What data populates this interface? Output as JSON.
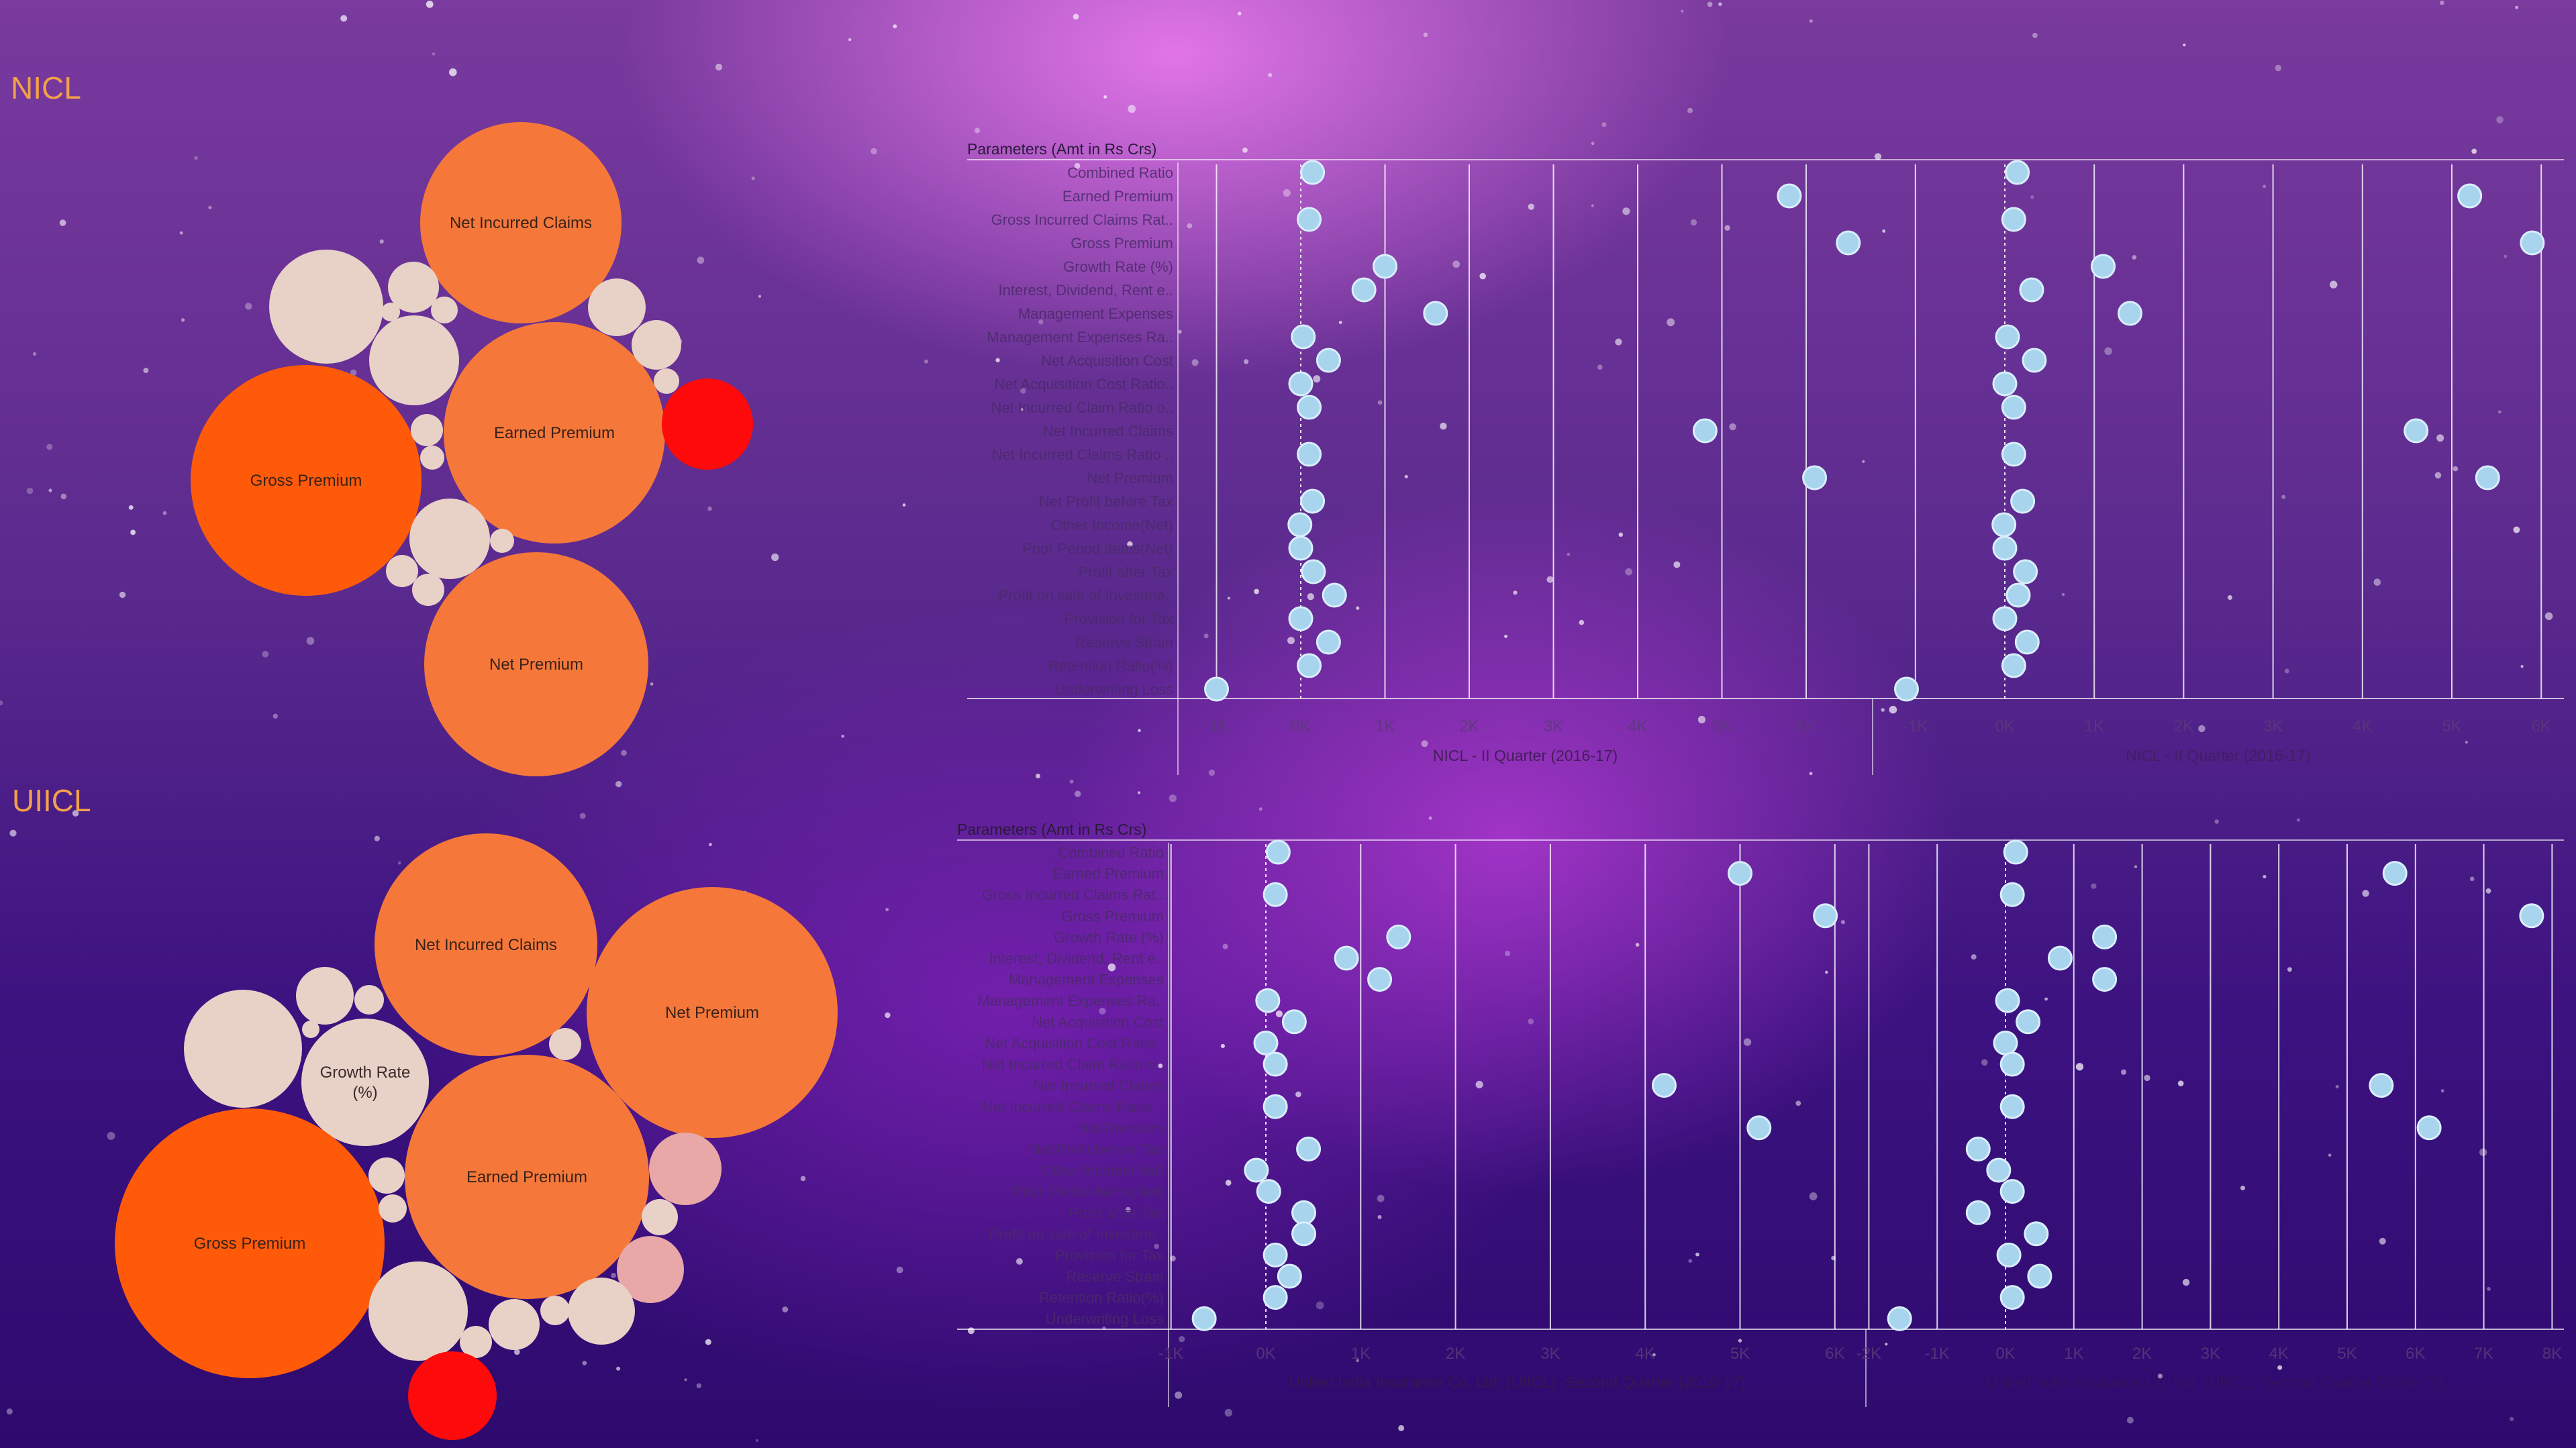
{
  "sections": [
    {
      "title": "NICL"
    },
    {
      "title": "UIICL"
    }
  ],
  "colors": {
    "large_bubble": "#f5783a",
    "largest_bubble": "#ff5a0a",
    "small_bubble": "#e8d2c8",
    "pink_bubble": "#e8a8a8",
    "red_bubble": "#ff0a0a",
    "dot_fill": "#a8d4ee",
    "dot_stroke": "#d8eefb",
    "grid_line": "#ffffff"
  },
  "bubbles": {
    "nicl": [
      {
        "label": "Net Incurred Claims",
        "size": "large"
      },
      {
        "label": "Earned Premium",
        "size": "large"
      },
      {
        "label": "Gross Premium",
        "size": "largest"
      },
      {
        "label": "Net Premium",
        "size": "large"
      }
    ],
    "uiicl": [
      {
        "label": "Net Incurred Claims",
        "size": "large"
      },
      {
        "label": "Net Premium",
        "size": "large"
      },
      {
        "label": "Growth Rate\n(%)",
        "size": "small"
      },
      {
        "label": "Earned Premium",
        "size": "large"
      },
      {
        "label": "Gross Premium",
        "size": "largest"
      }
    ]
  },
  "chart_data": [
    {
      "type": "scatter",
      "title": "NICL - II Quarter (2016-17)",
      "header": "Parameters (Amt in Rs Crs)",
      "categories": [
        "Combined Ratio",
        "Earned Premium",
        "Gross Incurred Claims Rat..",
        "Gross Premium",
        "Growth Rate (%)",
        "Interest, Dividend, Rent e..",
        "Management Expenses",
        "Management Expenses Ra..",
        "Net Acquisition Cost",
        "Net Acquisition Cost Ratio..",
        "Net Incurred Claim Ratio o..",
        "Net Incurred Claims",
        "Net Incurred Claims Ratio ..",
        "Net Premium",
        "Net Profit before Tax",
        "Other Income(Net)",
        "Prior Period Items(Net)",
        "Profit after Tax",
        "Profit on sale of Investme..",
        "Provision for Tax",
        "Reserve Strain",
        "Retention Ratio(%)",
        "Underwriting Loss"
      ],
      "panels": [
        {
          "xlim": [
            -1000,
            7300
          ],
          "ticks": [
            -1000,
            0,
            1000,
            2000,
            3000,
            4000,
            5000,
            6000
          ],
          "tick_labels": [
            "-1K",
            "0K",
            "1K",
            "2K",
            "3K",
            "4K",
            "5K",
            "6K"
          ],
          "values": [
            140,
            5800,
            100,
            6500,
            1000,
            750,
            1600,
            30,
            330,
            0,
            100,
            4800,
            100,
            6100,
            140,
            -10,
            0,
            150,
            400,
            0,
            330,
            100,
            -1000
          ]
        },
        {
          "xlim": [
            -1500,
            6000
          ],
          "ticks": [
            -1000,
            0,
            1000,
            2000,
            3000,
            4000,
            5000,
            6000
          ],
          "tick_labels": [
            "-1K",
            "0K",
            "1K",
            "2K",
            "3K",
            "4K",
            "5K",
            "6K"
          ],
          "values": [
            140,
            5200,
            100,
            5900,
            1100,
            300,
            1400,
            30,
            330,
            0,
            100,
            4600,
            100,
            5400,
            200,
            -10,
            0,
            230,
            150,
            0,
            250,
            100,
            -1100
          ]
        }
      ]
    },
    {
      "type": "scatter",
      "title": "United India Insurance Co. Ltd. (UIICL) -Second Quarter (2016-17)",
      "header": "Parameters (Amt in Rs Crs)",
      "categories": [
        "Combined Ratio",
        "Earned Premium",
        "Gross Incurred Claims Rat..",
        "Gross Premium",
        "Growth Rate (%)",
        "Interest, Dividend, Rent e..",
        "Management Expenses",
        "Management Expenses Ra..",
        "Net Acquisition Cost",
        "Net Acquisition Cost Ratio..",
        "Net Incurred Claim Ratio o..",
        "Net Incurred Claims",
        "Net Incurred Claims Ratio ..",
        "Net Premium",
        "Net Profit before Tax",
        "Other Income(Net)",
        "Prior Period Items(Net)",
        "Profit after Tax",
        "Profit on sale of Investme..",
        "Provision for Tax",
        "Reserve Strain",
        "Retention Ratio(%)",
        "Underwriting Loss"
      ],
      "panels": [
        {
          "xlim": [
            -1350,
            6800
          ],
          "ticks": [
            -1000,
            0,
            1000,
            2000,
            3000,
            4000,
            5000,
            6000
          ],
          "tick_labels": [
            "-1K",
            "0K",
            "1K",
            "2K",
            "3K",
            "4K",
            "5K",
            "6K"
          ],
          "values": [
            130,
            5000,
            100,
            5900,
            1400,
            850,
            1200,
            20,
            300,
            0,
            100,
            4200,
            100,
            5200,
            450,
            -100,
            30,
            400,
            400,
            100,
            250,
            100,
            -650
          ]
        },
        {
          "xlim": [
            -2200,
            8200
          ],
          "ticks": [
            -2000,
            -1000,
            0,
            1000,
            2000,
            3000,
            4000,
            5000,
            6000,
            7000,
            8000
          ],
          "tick_labels": [
            "-2K",
            "-1K",
            "0K",
            "1K",
            "2K",
            "3K",
            "4K",
            "5K",
            "6K",
            "7K",
            "8K"
          ],
          "values": [
            150,
            5700,
            100,
            7700,
            1450,
            800,
            1450,
            30,
            330,
            0,
            100,
            5500,
            100,
            6200,
            -400,
            -100,
            100,
            -400,
            450,
            50,
            500,
            100,
            -1550
          ]
        }
      ]
    }
  ]
}
